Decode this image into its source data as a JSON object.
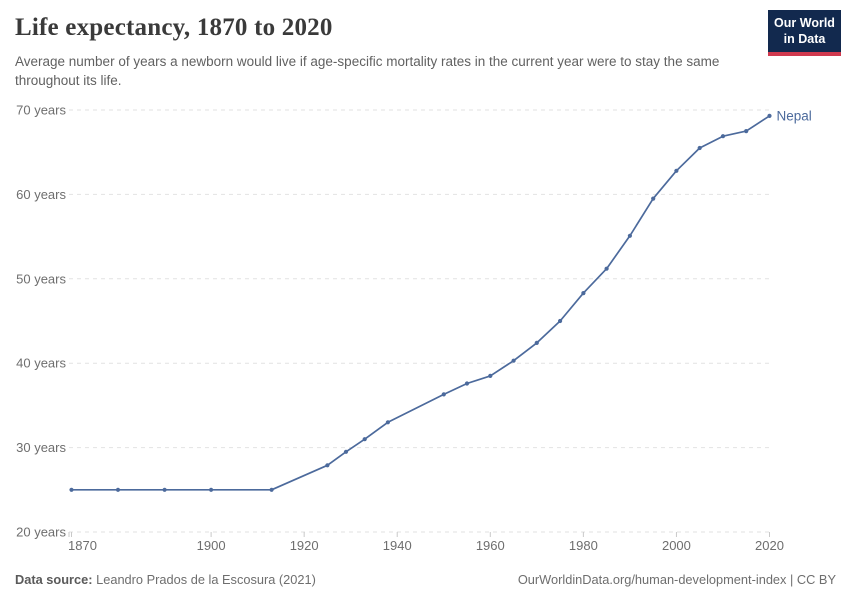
{
  "header": {
    "title": "Life expectancy, 1870 to 2020",
    "subtitle": "Average number of years a newborn would live if age-specific mortality rates in the current year were to stay the same throughout its life.",
    "logo": {
      "line1": "Our World",
      "line2": "in Data",
      "bg_color": "#12294e",
      "accent_color": "#d0394e"
    }
  },
  "chart_data": {
    "type": "line",
    "title": "Life expectancy, 1870 to 2020",
    "xlabel": "",
    "ylabel": "",
    "xlim": [
      1870,
      2020
    ],
    "ylim": [
      20,
      70
    ],
    "x_ticks": [
      1870,
      1900,
      1920,
      1940,
      1960,
      1980,
      2000,
      2020
    ],
    "y_ticks": [
      20,
      30,
      40,
      50,
      60,
      70
    ],
    "y_tick_suffix": " years",
    "grid": "horizontal-dashed",
    "legend_position": "end-of-line-label",
    "series": [
      {
        "name": "Nepal",
        "color": "#4C6A9C",
        "x": [
          1870,
          1880,
          1890,
          1900,
          1913,
          1925,
          1929,
          1933,
          1938,
          1950,
          1955,
          1960,
          1965,
          1970,
          1975,
          1980,
          1985,
          1990,
          1995,
          2000,
          2005,
          2010,
          2015,
          2020
        ],
        "values": [
          25.0,
          25.0,
          25.0,
          25.0,
          25.0,
          27.9,
          29.5,
          31.0,
          33.0,
          36.3,
          37.6,
          38.5,
          40.3,
          42.4,
          45.0,
          48.3,
          51.2,
          55.1,
          59.5,
          62.8,
          65.5,
          66.9,
          67.5,
          69.3
        ]
      }
    ],
    "colors": {
      "gridline": "#e2e2e2",
      "tick": "#c9c9c9",
      "axis_label": "#6e6e6e"
    }
  },
  "footer": {
    "source_label": "Data source:",
    "source_text": " Leandro Prados de la Escosura (2021)",
    "link_text": "OurWorldinData.org/human-development-index | CC BY"
  }
}
